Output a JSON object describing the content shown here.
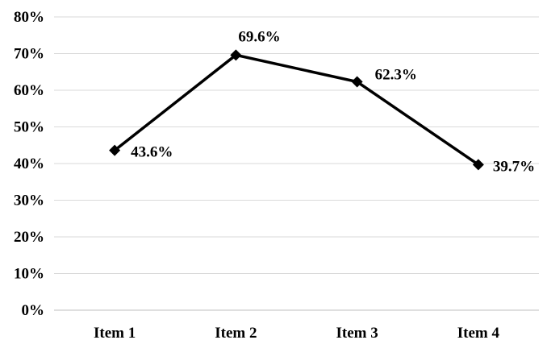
{
  "chart_data": {
    "type": "line",
    "categories": [
      "Item 1",
      "Item 2",
      "Item 3",
      "Item 4"
    ],
    "series": [
      {
        "values": [
          43.6,
          69.6,
          62.3,
          39.7
        ],
        "data_labels": [
          "43.6%",
          "69.6%",
          "62.3%",
          "39.7%"
        ],
        "color": "#000000",
        "marker": "diamond"
      }
    ],
    "ylim": [
      0,
      80
    ],
    "yticks": [
      0,
      10,
      20,
      30,
      40,
      50,
      60,
      70,
      80
    ],
    "ytick_labels": [
      "0%",
      "10%",
      "20%",
      "30%",
      "40%",
      "50%",
      "60%",
      "70%",
      "80%"
    ],
    "grid": true,
    "legend": "none",
    "title": "",
    "xlabel": "",
    "ylabel": ""
  }
}
